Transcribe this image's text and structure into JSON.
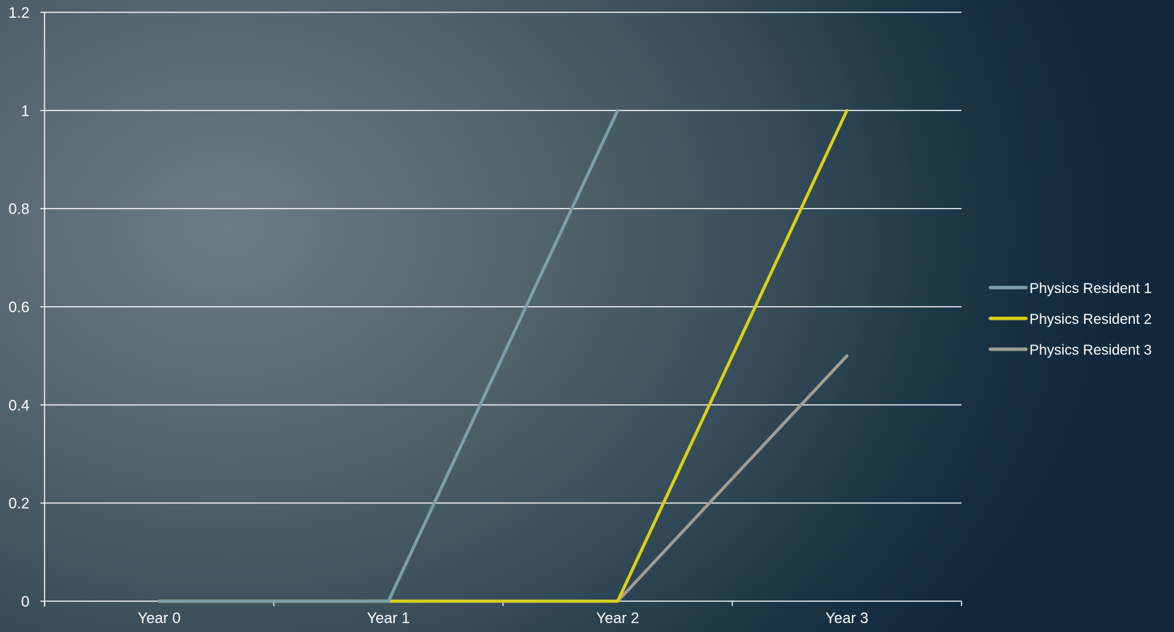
{
  "chart_data": {
    "type": "line",
    "title": "",
    "xlabel": "",
    "ylabel": "",
    "categories": [
      "Year 0",
      "Year 1",
      "Year 2",
      "Year 3"
    ],
    "ylim": [
      0,
      1.2
    ],
    "yticks": [
      "0",
      "0.2",
      "0.4",
      "0.6",
      "0.8",
      "1",
      "1.2"
    ],
    "grid": true,
    "legend_position": "right",
    "series": [
      {
        "name": "Physics Resident 1",
        "values": [
          0,
          0,
          1,
          null
        ],
        "color": "#7e9eab"
      },
      {
        "name": "Physics Resident 2",
        "values": [
          0,
          0,
          0,
          1
        ],
        "color": "#d8d115"
      },
      {
        "name": "Physics Resident 3",
        "values": [
          0,
          0,
          0,
          0.5
        ],
        "color": "#9f9e92"
      }
    ]
  }
}
